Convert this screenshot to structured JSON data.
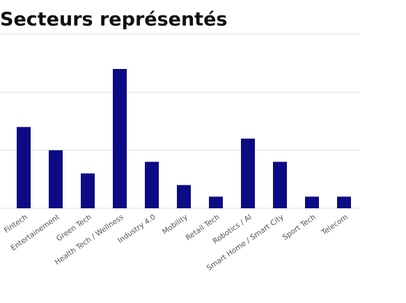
{
  "chart_data": {
    "type": "bar",
    "title": "Secteurs représentés",
    "categories": [
      "Fintech",
      "Entertainement",
      "Green Tech",
      "Health Tech / Wellness",
      "Industry 4.0",
      "Mobility",
      "Retail Tech",
      "Robotics / AI",
      "Smart Home / Smart City",
      "Sport Tech",
      "Telecom"
    ],
    "values": [
      7,
      5,
      3,
      12,
      4,
      2,
      1,
      6,
      4,
      1,
      1
    ],
    "color": "#0b0b85",
    "ylim": [
      0,
      15
    ],
    "yticks": [
      0,
      5,
      10,
      15
    ],
    "grid": true
  }
}
